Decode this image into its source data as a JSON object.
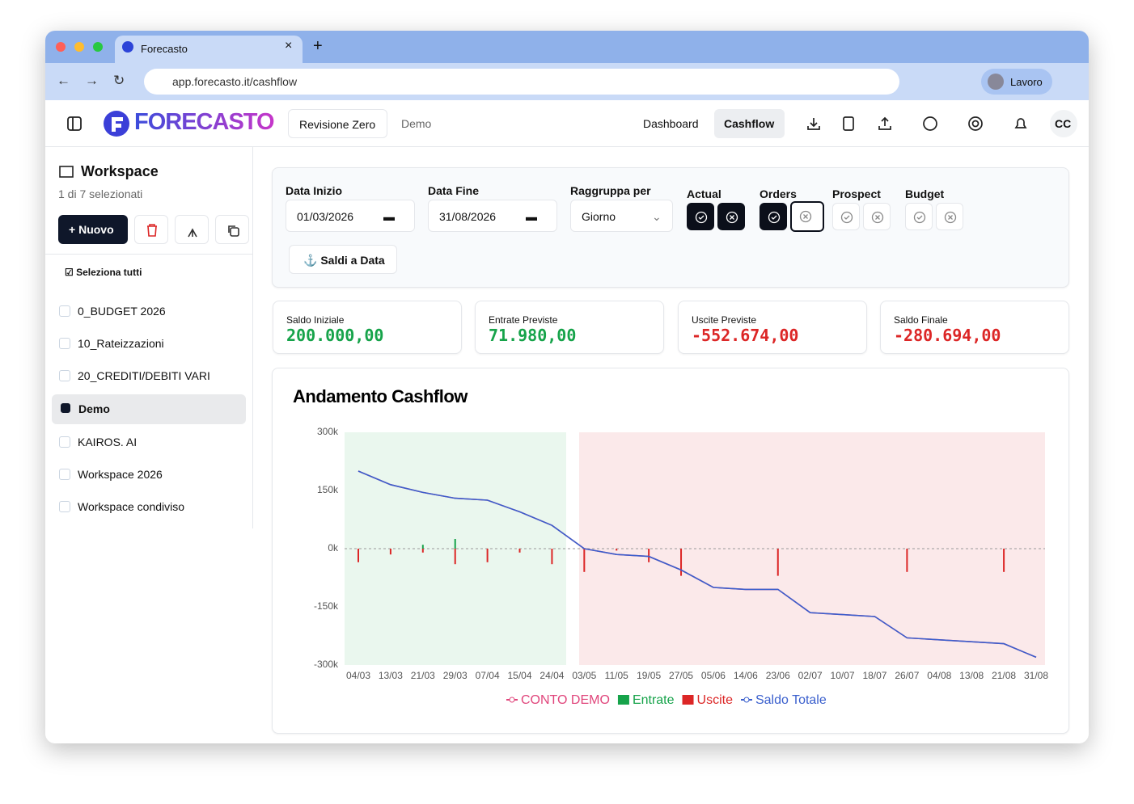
{
  "browser": {
    "tab_title": "Forecasto",
    "url": "app.forecasto.it/cashflow",
    "profile": "Lavoro"
  },
  "header": {
    "logo": "FORECASTO",
    "workspace_button": "Revisione Zero",
    "workspace_tag": "Demo",
    "nav": [
      "Dashboard",
      "Cashflow"
    ],
    "avatar": "CC"
  },
  "sidebar": {
    "title": "Workspace",
    "subtitle": "1 di 7 selezionati",
    "new_button": "Nuovo",
    "select_all": "Seleziona tutti",
    "items": [
      "0_BUDGET 2026",
      "10_Rateizzazioni",
      "20_CREDITI/DEBITI VARI",
      "Demo",
      "KAIROS. AI",
      "Workspace 2026",
      "Workspace condiviso"
    ]
  },
  "filters": {
    "start_label": "Data Inizio",
    "start_value": "01/03/2026",
    "end_label": "Data Fine",
    "end_value": "31/08/2026",
    "group_label": "Raggruppa per",
    "group_value": "Giorno",
    "toggles": [
      "Actual",
      "Orders",
      "Prospect",
      "Budget"
    ],
    "balance_button": "Saldi a Data"
  },
  "kpis": [
    {
      "label": "Saldo Iniziale",
      "value": "200.000,00"
    },
    {
      "label": "Entrate Previste",
      "value": "71.980,00"
    },
    {
      "label": "Uscite Previste",
      "value": "-552.674,00"
    },
    {
      "label": "Saldo Finale",
      "value": "-280.694,00"
    }
  ],
  "chart_data": {
    "type": "line",
    "title": "Andamento Cashflow",
    "categories": [
      "04/03",
      "13/03",
      "21/03",
      "29/03",
      "07/04",
      "15/04",
      "24/04",
      "03/05",
      "11/05",
      "19/05",
      "27/05",
      "05/06",
      "14/06",
      "23/06",
      "02/07",
      "10/07",
      "18/07",
      "26/07",
      "04/08",
      "13/08",
      "21/08",
      "31/08"
    ],
    "series": [
      {
        "name": "CONTO DEMO",
        "color": "#e0457b",
        "kind": "line",
        "values": [
          200000,
          165000,
          145000,
          130000,
          125000,
          95000,
          60000,
          0,
          -15000,
          -20000,
          -55000,
          -100000,
          -105000,
          -105000,
          -165000,
          -170000,
          -175000,
          -230000,
          -235000,
          -240000,
          -245000,
          -280000
        ]
      },
      {
        "name": "Entrate",
        "color": "#16a34a",
        "kind": "bar",
        "values": [
          0,
          0,
          10000,
          25000,
          0,
          0,
          0,
          0,
          0,
          0,
          0,
          0,
          0,
          0,
          0,
          0,
          0,
          0,
          0,
          0,
          0,
          0
        ]
      },
      {
        "name": "Uscite",
        "color": "#dc2626",
        "kind": "bar",
        "values": [
          -35000,
          -15000,
          -10000,
          -40000,
          -35000,
          -10000,
          -40000,
          -60000,
          -5000,
          -35000,
          -70000,
          0,
          0,
          -70000,
          0,
          0,
          0,
          -60000,
          0,
          0,
          -60000,
          0
        ]
      },
      {
        "name": "Saldo Totale",
        "color": "#3a5fcd",
        "kind": "line",
        "values": [
          200000,
          165000,
          145000,
          130000,
          125000,
          95000,
          60000,
          0,
          -15000,
          -20000,
          -55000,
          -100000,
          -105000,
          -105000,
          -165000,
          -170000,
          -175000,
          -230000,
          -235000,
          -240000,
          -245000,
          -280000
        ]
      }
    ],
    "ylim": [
      -300000,
      300000
    ],
    "yticks": [
      {
        "value": -300000,
        "label": "-300k"
      },
      {
        "value": -150000,
        "label": "-150k"
      },
      {
        "value": 0,
        "label": "0k"
      },
      {
        "value": 150000,
        "label": "150k"
      },
      {
        "value": 300000,
        "label": "300k"
      }
    ]
  }
}
